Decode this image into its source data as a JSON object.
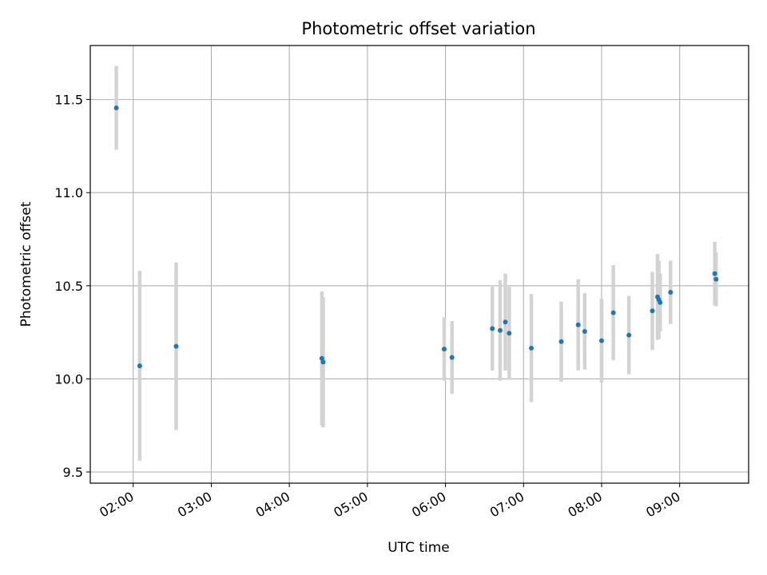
{
  "chart_data": {
    "type": "scatter",
    "title": "Photometric offset variation",
    "xlabel": "UTC time",
    "ylabel": "Photometric offset",
    "x_axis_type": "time",
    "xlim": [
      "01:27",
      "09:53"
    ],
    "ylim": [
      9.44,
      11.79
    ],
    "x_ticks": [
      "02:00",
      "03:00",
      "04:00",
      "05:00",
      "06:00",
      "07:00",
      "08:00",
      "09:00"
    ],
    "y_ticks": [
      9.5,
      10.0,
      10.5,
      11.0,
      11.5
    ],
    "y_tick_labels": [
      "9.5",
      "10.0",
      "10.5",
      "11.0",
      "11.5"
    ],
    "grid": true,
    "legend": "none",
    "marker_color": "#1f77b4",
    "errorbar_color": "#d3d3d3",
    "points": [
      {
        "t": "01:47",
        "y": 11.455,
        "err": 0.225
      },
      {
        "t": "02:05",
        "y": 10.07,
        "err": 0.51
      },
      {
        "t": "02:33",
        "y": 10.175,
        "err": 0.45
      },
      {
        "t": "04:25",
        "y": 10.11,
        "err": 0.36
      },
      {
        "t": "04:26",
        "y": 10.09,
        "err": 0.35
      },
      {
        "t": "05:59",
        "y": 10.16,
        "err": 0.17
      },
      {
        "t": "06:05",
        "y": 10.115,
        "err": 0.195
      },
      {
        "t": "06:36",
        "y": 10.27,
        "err": 0.225
      },
      {
        "t": "06:42",
        "y": 10.26,
        "err": 0.27
      },
      {
        "t": "06:46",
        "y": 10.305,
        "err": 0.26
      },
      {
        "t": "06:49",
        "y": 10.245,
        "err": 0.25
      },
      {
        "t": "07:06",
        "y": 10.165,
        "err": 0.29
      },
      {
        "t": "07:29",
        "y": 10.2,
        "err": 0.215
      },
      {
        "t": "07:42",
        "y": 10.29,
        "err": 0.245
      },
      {
        "t": "07:47",
        "y": 10.255,
        "err": 0.205
      },
      {
        "t": "08:00",
        "y": 10.205,
        "err": 0.225
      },
      {
        "t": "08:09",
        "y": 10.355,
        "err": 0.255
      },
      {
        "t": "08:21",
        "y": 10.235,
        "err": 0.21
      },
      {
        "t": "08:39",
        "y": 10.365,
        "err": 0.21
      },
      {
        "t": "08:43",
        "y": 10.44,
        "err": 0.23
      },
      {
        "t": "08:44",
        "y": 10.425,
        "err": 0.21
      },
      {
        "t": "08:45",
        "y": 10.41,
        "err": 0.155
      },
      {
        "t": "08:53",
        "y": 10.465,
        "err": 0.17
      },
      {
        "t": "09:27",
        "y": 10.565,
        "err": 0.17
      },
      {
        "t": "09:28",
        "y": 10.535,
        "err": 0.145
      }
    ]
  }
}
